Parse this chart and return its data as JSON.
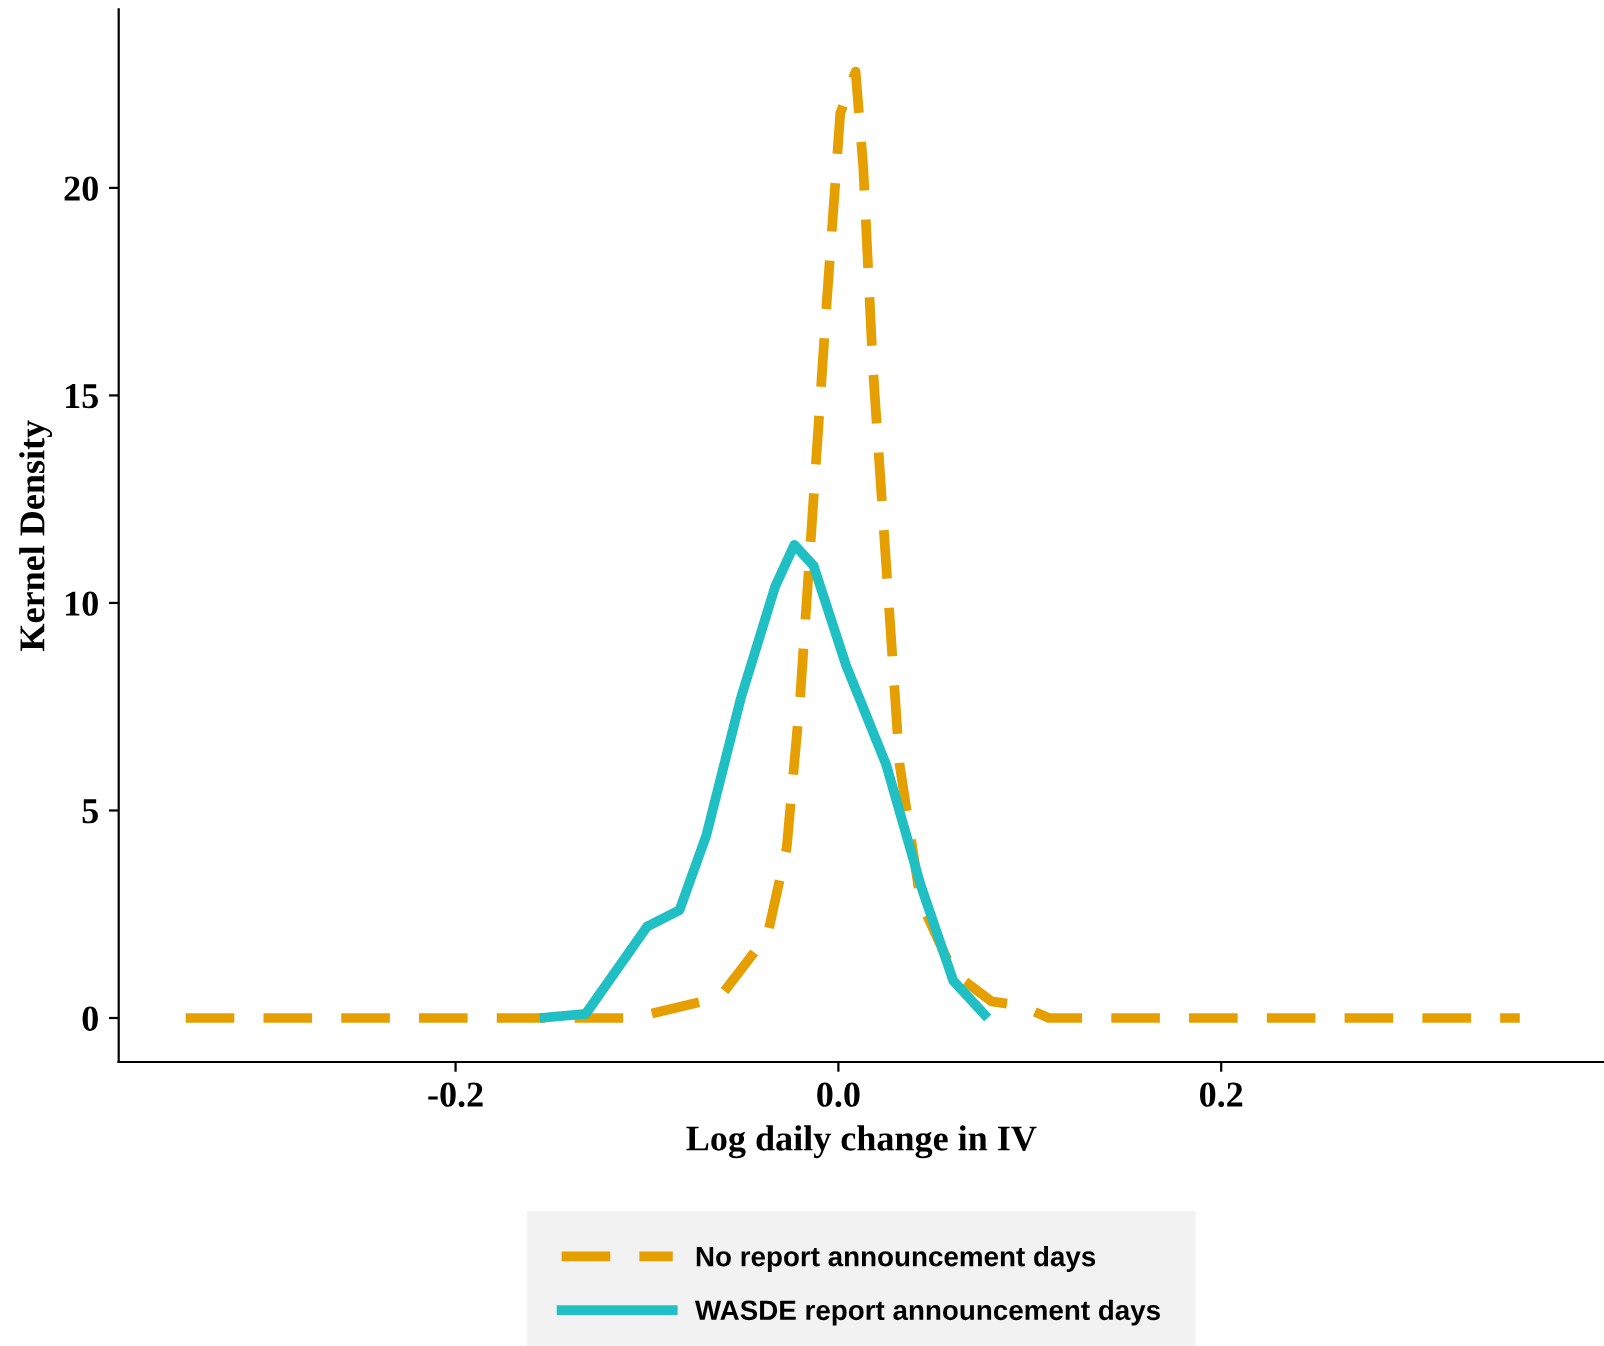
{
  "chart_data": {
    "type": "line",
    "xlabel": "Log daily change in IV",
    "ylabel": "Kernel Density",
    "xlim": [
      -0.376,
      0.4
    ],
    "ylim": [
      -1.06,
      24.3
    ],
    "xticks": [
      -0.2,
      {
        "value": 0,
        "label": "0.0"
      },
      0.2
    ],
    "yticks": [
      0,
      5,
      10,
      15,
      20
    ],
    "grid": false,
    "legend": "bottom",
    "series": [
      {
        "name": "No report announcement days",
        "color": "#e69f00",
        "line_style": "dashed",
        "x": [
          -0.341,
          -0.2,
          -0.107,
          -0.062,
          -0.037,
          -0.027,
          -0.02,
          -0.013,
          -0.006,
          0.001,
          0.009,
          0.013,
          0.018,
          0.025,
          0.032,
          0.043,
          0.06,
          0.08,
          0.095,
          0.11,
          0.2,
          0.356
        ],
        "values": [
          0,
          0,
          0,
          0.5,
          2.0,
          4.1,
          7.7,
          12.5,
          17.3,
          21.8,
          22.8,
          20.5,
          15.7,
          10.9,
          6.1,
          2.8,
          1.1,
          0.4,
          0.3,
          0,
          0,
          0
        ]
      },
      {
        "name": "WASDE report announcement days",
        "color": "#1fbfc4",
        "line_style": "solid",
        "x": [
          -0.156,
          -0.132,
          -0.1,
          -0.083,
          -0.069,
          -0.051,
          -0.033,
          -0.023,
          -0.013,
          0.004,
          0.025,
          0.043,
          0.06,
          0.078
        ],
        "values": [
          0,
          0.1,
          2.2,
          2.6,
          4.4,
          7.7,
          10.4,
          11.4,
          10.9,
          8.5,
          6.1,
          3.2,
          0.9,
          0
        ]
      }
    ]
  }
}
